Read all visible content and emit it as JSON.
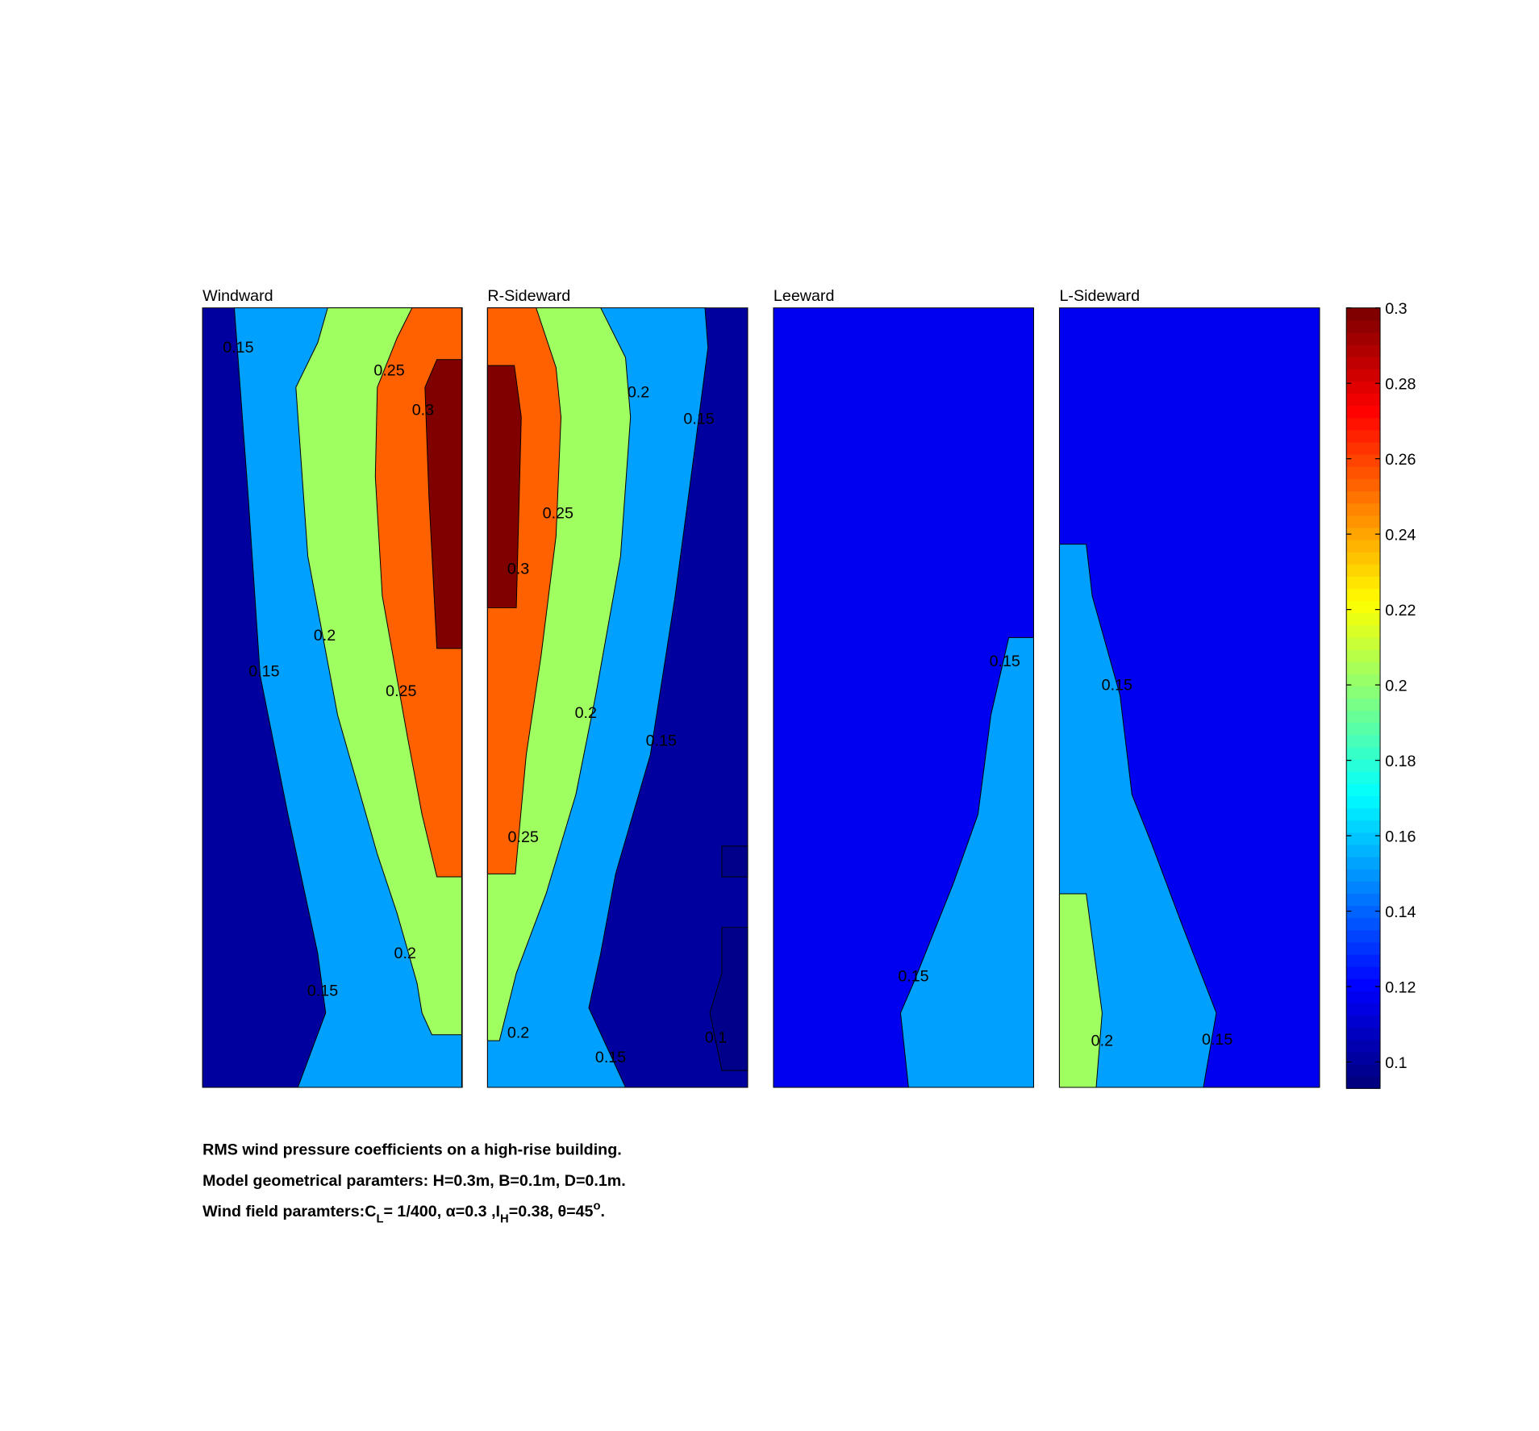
{
  "chart_data": {
    "type": "contour",
    "colormap": "jet",
    "clim": [
      0.093,
      0.3
    ],
    "cticks": [
      0.1,
      0.12,
      0.14,
      0.16,
      0.18,
      0.2,
      0.22,
      0.24,
      0.26,
      0.28,
      0.3
    ],
    "panels": [
      {
        "title": "Windward",
        "fills": [
          {
            "level": 0.1,
            "color": "#00009f"
          },
          {
            "level": 0.15,
            "color": "#00a0ff"
          },
          {
            "level": 0.2,
            "color": "#a0ff60"
          },
          {
            "level": 0.25,
            "color": "#ff6000"
          },
          {
            "level": 0.3,
            "color": "#800000"
          }
        ],
        "labels": [
          0.15,
          0.25,
          0.3,
          0.2,
          0.15,
          0.25,
          0.2,
          0.15
        ]
      },
      {
        "title": "R-Sideward",
        "fills": [
          {
            "level": 0.1,
            "color": "#00009f"
          },
          {
            "level": 0.15,
            "color": "#00a0ff"
          },
          {
            "level": 0.2,
            "color": "#a0ff60"
          },
          {
            "level": 0.25,
            "color": "#ff6000"
          },
          {
            "level": 0.3,
            "color": "#800000"
          },
          {
            "level": 0.095,
            "color": "#00008a"
          }
        ],
        "labels": [
          0.2,
          0.15,
          0.25,
          0.3,
          0.2,
          0.15,
          0.25,
          0.2,
          0.15,
          0.1
        ]
      },
      {
        "title": "Leeward",
        "fills": [
          {
            "level": 0.12,
            "color": "#0000f0"
          },
          {
            "level": 0.15,
            "color": "#00a0ff"
          }
        ],
        "labels": [
          0.15,
          0.15
        ]
      },
      {
        "title": "L-Sideward",
        "fills": [
          {
            "level": 0.12,
            "color": "#0000f0"
          },
          {
            "level": 0.15,
            "color": "#00a0ff"
          },
          {
            "level": 0.2,
            "color": "#a0ff60"
          }
        ],
        "labels": [
          0.15,
          0.2,
          0.15
        ]
      }
    ],
    "caption": [
      "RMS wind pressure coefficients on a high-rise building.",
      "Model geometrical paramters: H=0.3m, B=0.1m, D=0.1m.",
      [
        "Wind field paramters:C",
        "L",
        "= 1/400, α=0.3 ,I",
        "H",
        "=0.38, θ=45",
        "o",
        "."
      ]
    ]
  }
}
